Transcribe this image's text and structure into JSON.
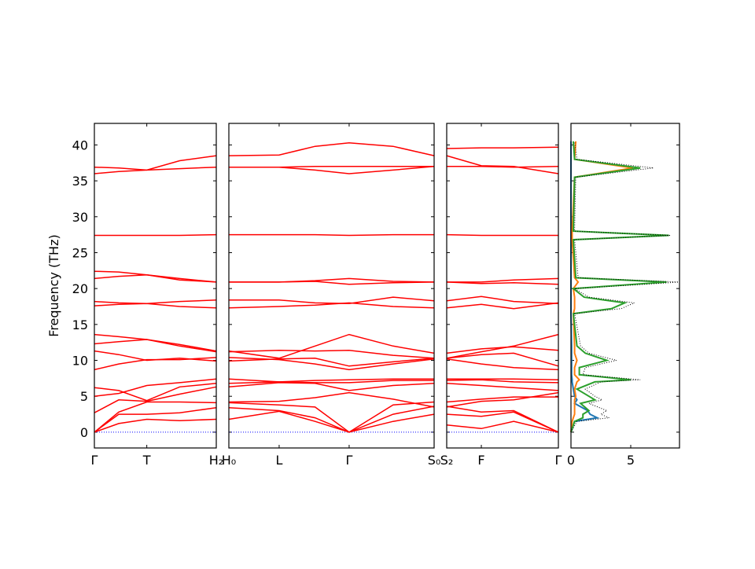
{
  "chart_data": [
    {
      "type": "bands",
      "ylabel": "Frequency (THz)",
      "ylim": [
        -2.2,
        43
      ],
      "yticks": [
        0,
        5,
        10,
        15,
        20,
        25,
        30,
        35,
        40
      ],
      "xlim": [
        0,
        1
      ],
      "xticks": [
        {
          "value": 0,
          "label": "Γ"
        },
        {
          "value": 0.43,
          "label": "T"
        },
        {
          "value": 1,
          "label": "H₂"
        }
      ],
      "color": "#ff0000",
      "hline": 0,
      "hline_color": "#0000ff",
      "x": [
        0,
        0.2,
        0.43,
        0.7,
        1
      ],
      "bands": [
        [
          0,
          1.2,
          1.8,
          1.6,
          1.8
        ],
        [
          0,
          2.5,
          2.5,
          2.7,
          3.4
        ],
        [
          0,
          2.8,
          4.2,
          4.2,
          4.1
        ],
        [
          2.7,
          4.5,
          4.3,
          5.3,
          6.3
        ],
        [
          5.0,
          5.4,
          6.5,
          6.9,
          7.4
        ],
        [
          6.2,
          5.8,
          4.4,
          6.3,
          6.8
        ],
        [
          8.7,
          9.5,
          10.1,
          10.1,
          10.4
        ],
        [
          11.3,
          10.8,
          10.0,
          10.3,
          9.9
        ],
        [
          12.3,
          12.6,
          12.9,
          12.2,
          11.3
        ],
        [
          13.6,
          13.3,
          12.9,
          12.0,
          11.2
        ],
        [
          17.6,
          17.8,
          17.9,
          17.5,
          17.3
        ],
        [
          18.2,
          18.0,
          17.9,
          18.2,
          18.4
        ],
        [
          21.4,
          21.7,
          21.9,
          21.4,
          20.9
        ],
        [
          22.4,
          22.3,
          21.9,
          21.2,
          20.9
        ],
        [
          27.4,
          27.4,
          27.4,
          27.4,
          27.5
        ],
        [
          36.0,
          36.3,
          36.5,
          37.8,
          38.5
        ],
        [
          36.9,
          36.8,
          36.5,
          36.7,
          36.9
        ]
      ]
    },
    {
      "type": "bands",
      "xlim": [
        0,
        1
      ],
      "xticks": [
        {
          "value": 0,
          "label": "H₀"
        },
        {
          "value": 0.245,
          "label": "L"
        },
        {
          "value": 0.586,
          "label": "Γ"
        },
        {
          "value": 1,
          "label": "S₀"
        }
      ],
      "color": "#ff0000",
      "hline": 0,
      "hline_color": "#0000ff",
      "x": [
        0,
        0.245,
        0.42,
        0.586,
        0.8,
        1
      ],
      "bands": [
        [
          1.8,
          2.9,
          1.5,
          0,
          1.5,
          2.5
        ],
        [
          3.4,
          3.0,
          2.0,
          0,
          2.5,
          3.6
        ],
        [
          4.1,
          3.8,
          3.5,
          0,
          3.8,
          4.2
        ],
        [
          4.2,
          4.3,
          4.8,
          5.5,
          4.6,
          3.5
        ],
        [
          6.3,
          6.9,
          6.8,
          5.8,
          6.5,
          6.8
        ],
        [
          6.8,
          7.0,
          6.9,
          6.9,
          7.2,
          7.2
        ],
        [
          7.4,
          7.0,
          7.2,
          7.3,
          7.4,
          7.4
        ],
        [
          10.4,
          10.1,
          9.5,
          8.7,
          9.5,
          10.2
        ],
        [
          9.9,
          10.2,
          10.3,
          9.2,
          9.8,
          10.3
        ],
        [
          11.2,
          11.4,
          11.3,
          11.4,
          10.7,
          10.3
        ],
        [
          11.3,
          10.3,
          12.0,
          13.6,
          12.0,
          11.0
        ],
        [
          17.3,
          17.5,
          17.7,
          18.0,
          17.5,
          17.3
        ],
        [
          18.4,
          18.4,
          18.0,
          17.9,
          18.8,
          18.3
        ],
        [
          20.9,
          20.9,
          21.1,
          21.4,
          21.0,
          20.9
        ],
        [
          20.9,
          20.9,
          21.0,
          20.6,
          20.8,
          20.9
        ],
        [
          27.5,
          27.5,
          27.5,
          27.4,
          27.5,
          27.5
        ],
        [
          36.9,
          36.9,
          36.5,
          36.0,
          36.5,
          37.0
        ],
        [
          38.5,
          38.6,
          39.8,
          40.3,
          39.8,
          38.5
        ],
        [
          36.9,
          36.9,
          37.0,
          37.0,
          37.0,
          37.0
        ]
      ]
    },
    {
      "type": "bands",
      "xlim": [
        0,
        1
      ],
      "xticks": [
        {
          "value": 0,
          "label": "S₂"
        },
        {
          "value": 0.31,
          "label": "F"
        },
        {
          "value": 1,
          "label": "Γ"
        }
      ],
      "color": "#ff0000",
      "hline": 0,
      "hline_color": "#0000ff",
      "x": [
        0,
        0.31,
        0.6,
        1
      ],
      "bands": [
        [
          1.0,
          0.5,
          1.5,
          0
        ],
        [
          2.5,
          2.2,
          2.8,
          0
        ],
        [
          3.6,
          2.8,
          3.0,
          0
        ],
        [
          3.5,
          4.3,
          4.5,
          5.5
        ],
        [
          4.2,
          4.6,
          4.9,
          4.9
        ],
        [
          6.8,
          6.5,
          6.2,
          5.8
        ],
        [
          7.2,
          7.3,
          7.0,
          6.9
        ],
        [
          7.4,
          7.4,
          7.4,
          7.3
        ],
        [
          10.2,
          9.5,
          9.0,
          8.7
        ],
        [
          10.3,
          10.8,
          11.0,
          9.2
        ],
        [
          11.0,
          11.6,
          11.9,
          11.4
        ],
        [
          10.3,
          11.2,
          12.0,
          13.6
        ],
        [
          17.3,
          17.8,
          17.2,
          18.0
        ],
        [
          18.3,
          18.9,
          18.2,
          17.9
        ],
        [
          20.9,
          20.9,
          21.2,
          21.4
        ],
        [
          20.9,
          20.7,
          20.8,
          20.6
        ],
        [
          27.5,
          27.4,
          27.4,
          27.4
        ],
        [
          38.5,
          37.1,
          37.0,
          36.0
        ],
        [
          37.0,
          37.0,
          36.9,
          37.0
        ],
        [
          39.5,
          39.6,
          39.6,
          39.7
        ]
      ]
    },
    {
      "type": "dos",
      "xlim": [
        0,
        9.08
      ],
      "xticks": [
        0,
        5
      ],
      "frequencies": [
        0,
        1.5,
        2,
        2.5,
        3,
        4,
        4.5,
        5,
        6,
        7,
        7.3,
        8,
        9,
        10,
        11,
        12,
        16.5,
        17.2,
        18,
        18.8,
        20,
        20.9,
        21.5,
        26.8,
        27.4,
        28,
        35.5,
        36.8,
        38,
        40.5
      ],
      "series": [
        {
          "color": "#1f77b4",
          "values": [
            0,
            0.3,
            2.2,
            1.6,
            1.4,
            0.3,
            0.5,
            0.3,
            0.2,
            0.1,
            0.1,
            0.05,
            0.05,
            0.05,
            0.05,
            0.05,
            0,
            0,
            0,
            0,
            0,
            0,
            0,
            0,
            0,
            0,
            0,
            0,
            0,
            0
          ]
        },
        {
          "color": "#ff7f0e",
          "values": [
            0,
            0.1,
            0.2,
            0.3,
            0.3,
            0.3,
            0.3,
            0.4,
            0.3,
            0.5,
            0.7,
            0.3,
            0.3,
            0.5,
            0.3,
            0.3,
            0.2,
            0.3,
            0.3,
            0.3,
            0.2,
            0.6,
            0.3,
            0.1,
            0.1,
            0.1,
            0.3,
            5.2,
            0.3,
            0.4
          ]
        },
        {
          "color": "#2ca02c",
          "values": [
            0,
            0.3,
            1.0,
            1.0,
            1.5,
            0.8,
            2.0,
            1.5,
            0.5,
            2.0,
            5.0,
            0.7,
            0.7,
            3.0,
            1.2,
            0.5,
            0.2,
            3.4,
            4.5,
            1.1,
            0.2,
            8.0,
            0.4,
            0.2,
            8.2,
            0.2,
            0.3,
            5.8,
            0.3,
            0.2
          ]
        },
        {
          "color": "#000000",
          "dotted": true,
          "values": [
            0,
            0.5,
            3.2,
            2.5,
            3,
            1.5,
            2.6,
            2,
            1.2,
            2.5,
            5.8,
            1.0,
            1.2,
            3.8,
            1.5,
            0.8,
            0.3,
            4.2,
            5.3,
            1.5,
            0.3,
            9.1,
            0.6,
            0.3,
            8.3,
            0.3,
            0.4,
            6.9,
            0.5,
            0.3
          ]
        }
      ]
    }
  ]
}
